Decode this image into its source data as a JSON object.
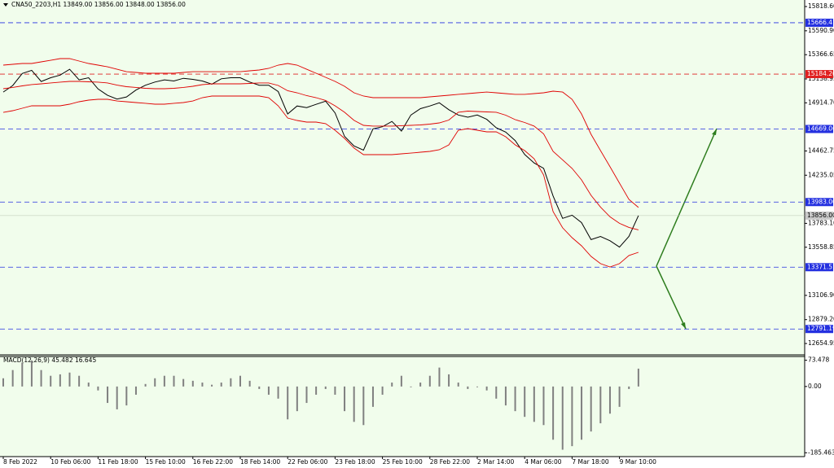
{
  "chart_data": {
    "type": "line",
    "title": "CNA50_2203,H1  13849.00 13856.00 13848.00 13856.00",
    "categories": [
      "8 Feb 2022",
      null,
      null,
      null,
      null,
      "10 Feb 06:00",
      null,
      null,
      null,
      null,
      "11 Feb 18:00",
      null,
      null,
      null,
      null,
      "15 Feb 10:00",
      null,
      null,
      null,
      null,
      "16 Feb 22:00",
      null,
      null,
      null,
      null,
      "18 Feb 14:00",
      null,
      null,
      null,
      null,
      "22 Feb 06:00",
      null,
      null,
      null,
      null,
      "23 Feb 18:00",
      null,
      null,
      null,
      null,
      "25 Feb 10:00",
      null,
      null,
      null,
      null,
      "28 Feb 22:00",
      null,
      null,
      null,
      null,
      "2 Mar 14:00",
      null,
      null,
      null,
      null,
      "4 Mar 06:00",
      null,
      null,
      null,
      null,
      "7 Mar 18:00",
      null,
      null,
      null,
      null,
      "9 Mar 10:00",
      null,
      null
    ],
    "series": [
      {
        "name": "price",
        "color": "#000000",
        "values": [
          15016,
          15077,
          15190,
          15220,
          15115,
          15150,
          15175,
          15230,
          15130,
          15150,
          15045,
          14985,
          14950,
          14970,
          15035,
          15080,
          15110,
          15130,
          15120,
          15145,
          15135,
          15120,
          15090,
          15140,
          15150,
          15150,
          15110,
          15080,
          15080,
          15020,
          14810,
          14885,
          14870,
          14900,
          14930,
          14820,
          14600,
          14510,
          14470,
          14670,
          14690,
          14740,
          14650,
          14800,
          14860,
          14885,
          14915,
          14850,
          14800,
          14780,
          14800,
          14760,
          14680,
          14640,
          14560,
          14430,
          14350,
          14300,
          14040,
          13830,
          13860,
          13790,
          13630,
          13660,
          13620,
          13560,
          13660,
          13856
        ]
      },
      {
        "name": "upper",
        "color": "#e00000",
        "values": [
          15269,
          15276,
          15284,
          15284,
          15299,
          15314,
          15330,
          15330,
          15307,
          15284,
          15269,
          15253,
          15230,
          15207,
          15200,
          15192,
          15192,
          15192,
          15192,
          15200,
          15207,
          15207,
          15207,
          15207,
          15207,
          15207,
          15215,
          15223,
          15238,
          15269,
          15284,
          15269,
          15230,
          15192,
          15154,
          15116,
          15070,
          15009,
          14978,
          14963,
          14963,
          14963,
          14963,
          14963,
          14963,
          14971,
          14978,
          14986,
          14994,
          15001,
          15009,
          15016,
          15009,
          15001,
          14994,
          14994,
          15001,
          15009,
          15024,
          15016,
          14948,
          14810,
          14619,
          14466,
          14314,
          14161,
          14008,
          13932
        ]
      },
      {
        "name": "middle",
        "color": "#e00000",
        "values": [
          15047,
          15059,
          15074,
          15086,
          15093,
          15101,
          15109,
          15116,
          15116,
          15112,
          15109,
          15101,
          15081,
          15066,
          15059,
          15051,
          15047,
          15047,
          15051,
          15059,
          15070,
          15085,
          15093,
          15093,
          15093,
          15093,
          15097,
          15101,
          15101,
          15078,
          15028,
          15009,
          14982,
          14963,
          14937,
          14887,
          14826,
          14750,
          14703,
          14696,
          14696,
          14696,
          14700,
          14703,
          14707,
          14715,
          14726,
          14753,
          14826,
          14837,
          14833,
          14829,
          14826,
          14799,
          14757,
          14730,
          14696,
          14623,
          14459,
          14379,
          14299,
          14191,
          14046,
          13936,
          13844,
          13783,
          13745,
          13722
        ]
      },
      {
        "name": "lower",
        "color": "#e00000",
        "values": [
          14825,
          14841,
          14864,
          14887,
          14887,
          14887,
          14887,
          14902,
          14925,
          14940,
          14948,
          14948,
          14932,
          14925,
          14917,
          14910,
          14902,
          14902,
          14910,
          14917,
          14932,
          14963,
          14978,
          14978,
          14978,
          14978,
          14978,
          14978,
          14963,
          14887,
          14772,
          14749,
          14734,
          14734,
          14719,
          14657,
          14581,
          14490,
          14428,
          14428,
          14428,
          14428,
          14436,
          14443,
          14451,
          14459,
          14474,
          14520,
          14657,
          14673,
          14657,
          14642,
          14642,
          14596,
          14520,
          14466,
          14390,
          14237,
          13893,
          13741,
          13649,
          13572,
          13473,
          13405,
          13374,
          13405,
          13481,
          13511
        ]
      }
    ],
    "ylim": [
      12556,
      15880
    ],
    "yticks": [
      {
        "value": 15818.6,
        "label": "15818.60"
      },
      {
        "value": 15590.9,
        "label": "15590.90"
      },
      {
        "value": 15366.65,
        "label": "15366.65"
      },
      {
        "value": 15138.95,
        "label": "15138.95"
      },
      {
        "value": 14914.7,
        "label": "14914.70"
      },
      {
        "value": 14462.75,
        "label": "14462.75"
      },
      {
        "value": 14235.05,
        "label": "14235.05"
      },
      {
        "value": 13783.1,
        "label": "13783.10"
      },
      {
        "value": 13558.85,
        "label": "13558.85"
      },
      {
        "value": 13106.9,
        "label": "13106.90"
      },
      {
        "value": 12879.2,
        "label": "12879.20"
      },
      {
        "value": 12654.95,
        "label": "12654.95"
      }
    ],
    "levels": [
      {
        "value": 15666.41,
        "label": "15666.41",
        "color": "#2430e0"
      },
      {
        "value": 15184.26,
        "label": "15184.26",
        "color": "#e02020"
      },
      {
        "value": 14669.06,
        "label": "14669.06",
        "color": "#2430e0"
      },
      {
        "value": 13983,
        "label": "13983.00",
        "color": "#2430e0"
      },
      {
        "value": 13371.51,
        "label": "13371.51",
        "color": "#2430e0"
      },
      {
        "value": 12791.19,
        "label": "12791.19",
        "color": "#2430e0"
      }
    ],
    "current_price": {
      "value": 13856,
      "label": "13856.00"
    },
    "macd": {
      "title": "MACD(12,26,9) 45.482 16.645",
      "color": "#808080",
      "values": [
        23,
        46,
        67,
        73,
        46,
        30,
        34,
        39,
        30,
        11,
        -11,
        -46,
        -64,
        -53,
        -23,
        7,
        23,
        30,
        30,
        21,
        16,
        11,
        5,
        11,
        23,
        30,
        16,
        -7,
        -23,
        -34,
        -92,
        -69,
        -46,
        -23,
        -7,
        -23,
        -69,
        -99,
        -108,
        -57,
        -23,
        11,
        30,
        -2,
        11,
        30,
        53,
        34,
        11,
        -7,
        -2,
        -11,
        -34,
        -53,
        -69,
        -85,
        -99,
        -108,
        -149,
        -177,
        -167,
        -149,
        -126,
        -103,
        -76,
        -57,
        -7,
        50
      ],
      "ylim": [
        -194,
        84
      ],
      "yticks": [
        73.478,
        {
          "value": 0,
          "label": "0.00"
        },
        -185.463
      ]
    }
  }
}
